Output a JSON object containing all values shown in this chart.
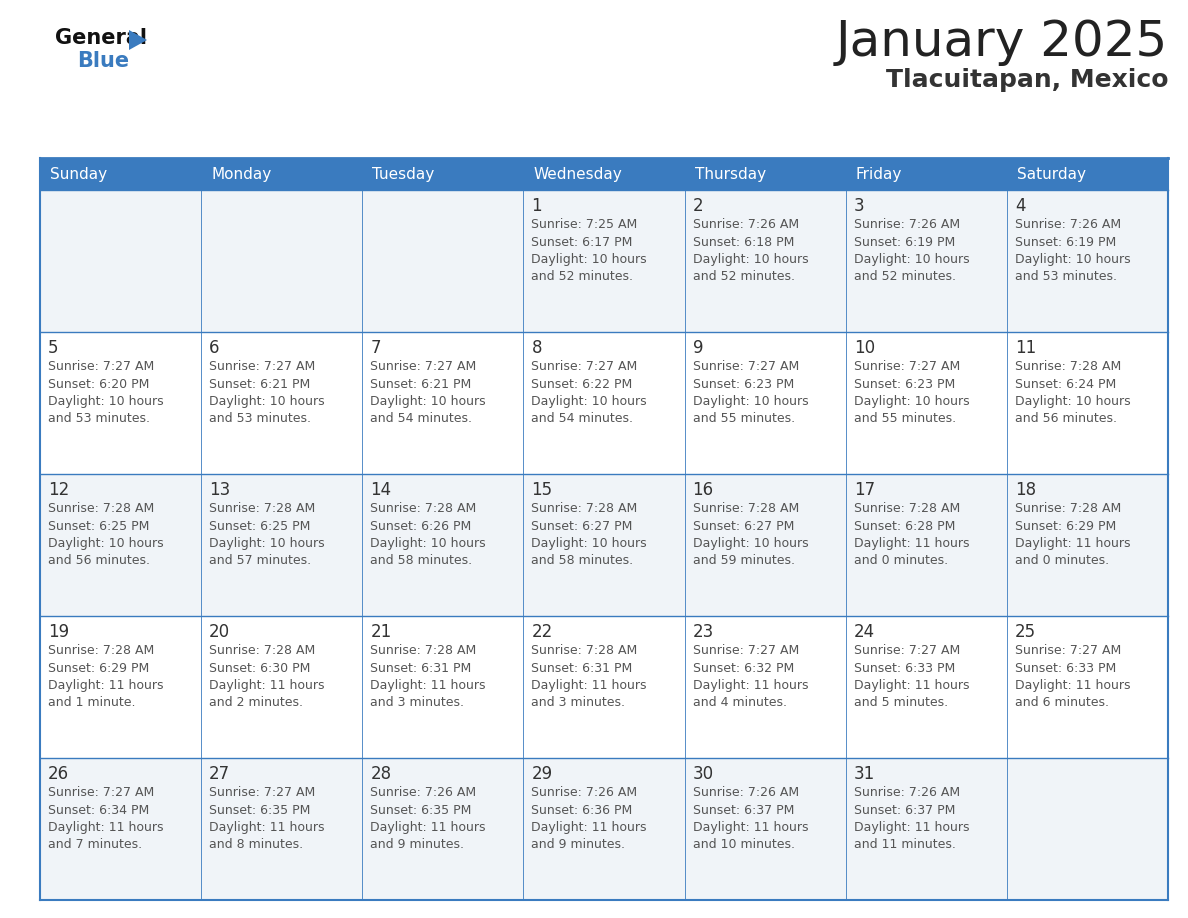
{
  "title": "January 2025",
  "subtitle": "Tlacuitapan, Mexico",
  "days_of_week": [
    "Sunday",
    "Monday",
    "Tuesday",
    "Wednesday",
    "Thursday",
    "Friday",
    "Saturday"
  ],
  "header_bg": "#3a7bbf",
  "header_text": "#ffffff",
  "cell_bg_odd": "#f0f4f8",
  "cell_bg_even": "#ffffff",
  "grid_line_color": "#3a7bbf",
  "day_num_color": "#333333",
  "text_color": "#555555",
  "title_color": "#222222",
  "subtitle_color": "#333333",
  "logo_general_color": "#111111",
  "logo_blue_color": "#3a7bbf",
  "logo_triangle_color": "#3a7bbf",
  "weeks": [
    [
      {
        "day": null,
        "info": null
      },
      {
        "day": null,
        "info": null
      },
      {
        "day": null,
        "info": null
      },
      {
        "day": 1,
        "info": "Sunrise: 7:25 AM\nSunset: 6:17 PM\nDaylight: 10 hours\nand 52 minutes."
      },
      {
        "day": 2,
        "info": "Sunrise: 7:26 AM\nSunset: 6:18 PM\nDaylight: 10 hours\nand 52 minutes."
      },
      {
        "day": 3,
        "info": "Sunrise: 7:26 AM\nSunset: 6:19 PM\nDaylight: 10 hours\nand 52 minutes."
      },
      {
        "day": 4,
        "info": "Sunrise: 7:26 AM\nSunset: 6:19 PM\nDaylight: 10 hours\nand 53 minutes."
      }
    ],
    [
      {
        "day": 5,
        "info": "Sunrise: 7:27 AM\nSunset: 6:20 PM\nDaylight: 10 hours\nand 53 minutes."
      },
      {
        "day": 6,
        "info": "Sunrise: 7:27 AM\nSunset: 6:21 PM\nDaylight: 10 hours\nand 53 minutes."
      },
      {
        "day": 7,
        "info": "Sunrise: 7:27 AM\nSunset: 6:21 PM\nDaylight: 10 hours\nand 54 minutes."
      },
      {
        "day": 8,
        "info": "Sunrise: 7:27 AM\nSunset: 6:22 PM\nDaylight: 10 hours\nand 54 minutes."
      },
      {
        "day": 9,
        "info": "Sunrise: 7:27 AM\nSunset: 6:23 PM\nDaylight: 10 hours\nand 55 minutes."
      },
      {
        "day": 10,
        "info": "Sunrise: 7:27 AM\nSunset: 6:23 PM\nDaylight: 10 hours\nand 55 minutes."
      },
      {
        "day": 11,
        "info": "Sunrise: 7:28 AM\nSunset: 6:24 PM\nDaylight: 10 hours\nand 56 minutes."
      }
    ],
    [
      {
        "day": 12,
        "info": "Sunrise: 7:28 AM\nSunset: 6:25 PM\nDaylight: 10 hours\nand 56 minutes."
      },
      {
        "day": 13,
        "info": "Sunrise: 7:28 AM\nSunset: 6:25 PM\nDaylight: 10 hours\nand 57 minutes."
      },
      {
        "day": 14,
        "info": "Sunrise: 7:28 AM\nSunset: 6:26 PM\nDaylight: 10 hours\nand 58 minutes."
      },
      {
        "day": 15,
        "info": "Sunrise: 7:28 AM\nSunset: 6:27 PM\nDaylight: 10 hours\nand 58 minutes."
      },
      {
        "day": 16,
        "info": "Sunrise: 7:28 AM\nSunset: 6:27 PM\nDaylight: 10 hours\nand 59 minutes."
      },
      {
        "day": 17,
        "info": "Sunrise: 7:28 AM\nSunset: 6:28 PM\nDaylight: 11 hours\nand 0 minutes."
      },
      {
        "day": 18,
        "info": "Sunrise: 7:28 AM\nSunset: 6:29 PM\nDaylight: 11 hours\nand 0 minutes."
      }
    ],
    [
      {
        "day": 19,
        "info": "Sunrise: 7:28 AM\nSunset: 6:29 PM\nDaylight: 11 hours\nand 1 minute."
      },
      {
        "day": 20,
        "info": "Sunrise: 7:28 AM\nSunset: 6:30 PM\nDaylight: 11 hours\nand 2 minutes."
      },
      {
        "day": 21,
        "info": "Sunrise: 7:28 AM\nSunset: 6:31 PM\nDaylight: 11 hours\nand 3 minutes."
      },
      {
        "day": 22,
        "info": "Sunrise: 7:28 AM\nSunset: 6:31 PM\nDaylight: 11 hours\nand 3 minutes."
      },
      {
        "day": 23,
        "info": "Sunrise: 7:27 AM\nSunset: 6:32 PM\nDaylight: 11 hours\nand 4 minutes."
      },
      {
        "day": 24,
        "info": "Sunrise: 7:27 AM\nSunset: 6:33 PM\nDaylight: 11 hours\nand 5 minutes."
      },
      {
        "day": 25,
        "info": "Sunrise: 7:27 AM\nSunset: 6:33 PM\nDaylight: 11 hours\nand 6 minutes."
      }
    ],
    [
      {
        "day": 26,
        "info": "Sunrise: 7:27 AM\nSunset: 6:34 PM\nDaylight: 11 hours\nand 7 minutes."
      },
      {
        "day": 27,
        "info": "Sunrise: 7:27 AM\nSunset: 6:35 PM\nDaylight: 11 hours\nand 8 minutes."
      },
      {
        "day": 28,
        "info": "Sunrise: 7:26 AM\nSunset: 6:35 PM\nDaylight: 11 hours\nand 9 minutes."
      },
      {
        "day": 29,
        "info": "Sunrise: 7:26 AM\nSunset: 6:36 PM\nDaylight: 11 hours\nand 9 minutes."
      },
      {
        "day": 30,
        "info": "Sunrise: 7:26 AM\nSunset: 6:37 PM\nDaylight: 11 hours\nand 10 minutes."
      },
      {
        "day": 31,
        "info": "Sunrise: 7:26 AM\nSunset: 6:37 PM\nDaylight: 11 hours\nand 11 minutes."
      },
      {
        "day": null,
        "info": null
      }
    ]
  ]
}
